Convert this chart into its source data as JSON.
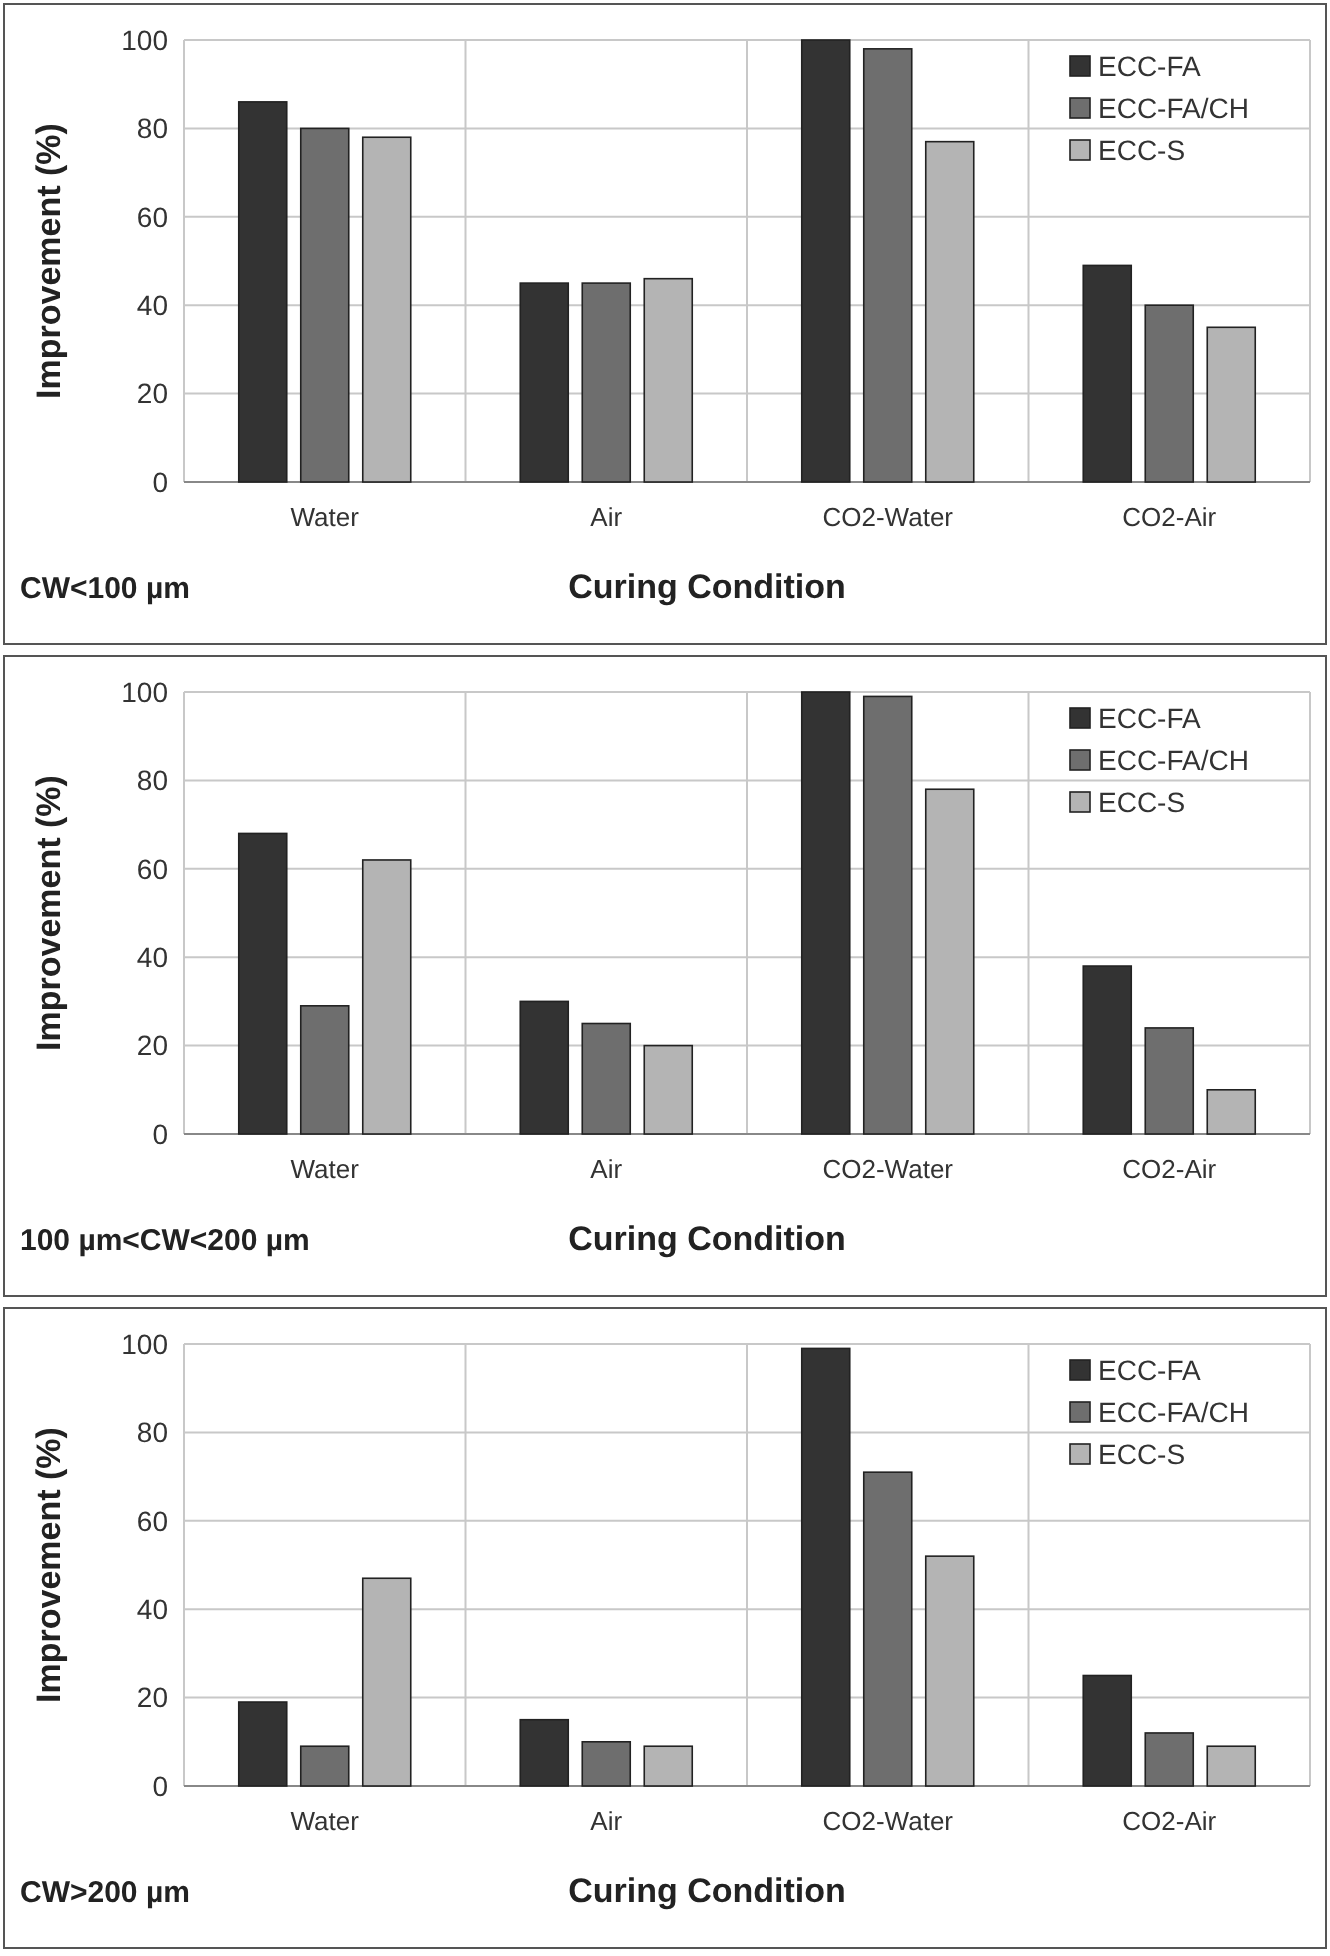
{
  "chart_data": [
    {
      "type": "bar",
      "ylabel": "Improvement (%)",
      "xlabel": "Curing Condition",
      "annotations": [
        "CW<100 µm"
      ],
      "categories": [
        "Water",
        "Air",
        "CO2-Water",
        "CO2-Air"
      ],
      "ylim": [
        0,
        100
      ],
      "yticks": [
        0,
        20,
        40,
        60,
        80,
        100
      ],
      "grid": true,
      "legend": "top right",
      "series": [
        {
          "name": "ECC-FA",
          "color": "#333333",
          "values": [
            86,
            45,
            100,
            49
          ]
        },
        {
          "name": "ECC-FA/CH",
          "color": "#6e6e6e",
          "values": [
            80,
            45,
            98,
            40
          ]
        },
        {
          "name": "ECC-S",
          "color": "#b4b4b4",
          "values": [
            78,
            46,
            77,
            35
          ]
        }
      ]
    },
    {
      "type": "bar",
      "ylabel": "Improvement (%)",
      "xlabel": "Curing Condition",
      "annotations": [
        "100 µm<CW<200 µm"
      ],
      "categories": [
        "Water",
        "Air",
        "CO2-Water",
        "CO2-Air"
      ],
      "ylim": [
        0,
        100
      ],
      "yticks": [
        0,
        20,
        40,
        60,
        80,
        100
      ],
      "grid": true,
      "legend": "top right",
      "series": [
        {
          "name": "ECC-FA",
          "color": "#333333",
          "values": [
            68,
            30,
            100,
            38
          ]
        },
        {
          "name": "ECC-FA/CH",
          "color": "#6e6e6e",
          "values": [
            29,
            25,
            99,
            24
          ]
        },
        {
          "name": "ECC-S",
          "color": "#b4b4b4",
          "values": [
            62,
            20,
            78,
            10
          ]
        }
      ]
    },
    {
      "type": "bar",
      "ylabel": "Improvement (%)",
      "xlabel": "Curing Condition",
      "annotations": [
        "CW>200 µm"
      ],
      "categories": [
        "Water",
        "Air",
        "CO2-Water",
        "CO2-Air"
      ],
      "ylim": [
        0,
        100
      ],
      "yticks": [
        0,
        20,
        40,
        60,
        80,
        100
      ],
      "grid": true,
      "legend": "top right",
      "series": [
        {
          "name": "ECC-FA",
          "color": "#333333",
          "values": [
            19,
            15,
            99,
            25
          ]
        },
        {
          "name": "ECC-FA/CH",
          "color": "#6e6e6e",
          "values": [
            9,
            10,
            71,
            12
          ]
        },
        {
          "name": "ECC-S",
          "color": "#b4b4b4",
          "values": [
            47,
            9,
            52,
            9
          ]
        }
      ]
    }
  ]
}
